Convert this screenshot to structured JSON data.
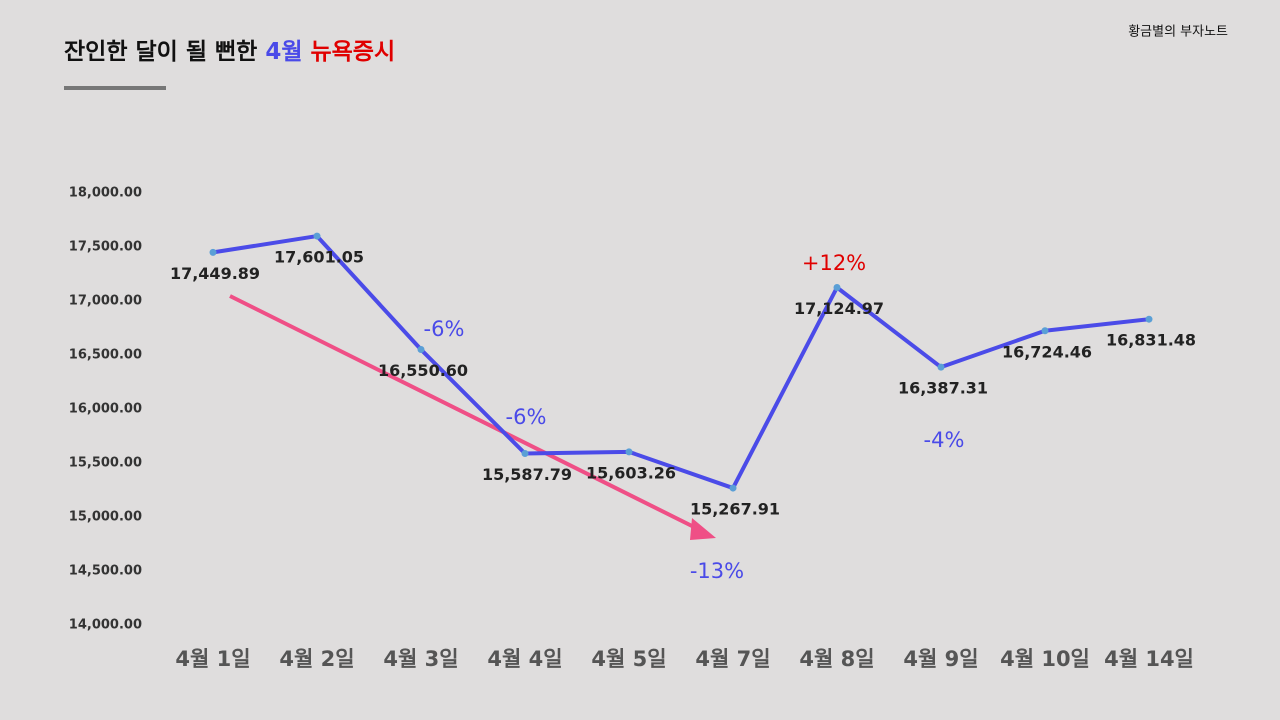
{
  "brand": "황금별의 부자노트",
  "chart_data": {
    "type": "line",
    "title_parts": [
      {
        "text": "잔인한 달이 될 뻔한 ",
        "color": "#111111"
      },
      {
        "text": "4월",
        "color": "#4a4ae8"
      },
      {
        "text": " 뉴욕증시",
        "color": "#e00000"
      }
    ],
    "categories": [
      "4월 1일",
      "4월 2일",
      "4월 3일",
      "4월 4일",
      "4월 5일",
      "4월 7일",
      "4월 8일",
      "4월 9일",
      "4월 10일",
      "4월 14일"
    ],
    "series": [
      {
        "name": null,
        "color": "#4b4be8",
        "marker_color": "#5a9fd6",
        "values": [
          17449.89,
          17601.05,
          16550.6,
          15587.79,
          15603.26,
          15267.91,
          17124.97,
          16387.31,
          16724.46,
          16831.48
        ],
        "value_labels": [
          "17,449.89",
          "17,601.05",
          "16,550.60",
          "15,587.79",
          "15,603.26",
          "15,267.91",
          "17,124.97",
          "16,387.31",
          "16,724.46",
          "16,831.48"
        ]
      }
    ],
    "ylim": [
      14000,
      18000
    ],
    "yticks": [
      {
        "value": 14000,
        "label": "14,000.00"
      },
      {
        "value": 14500,
        "label": "14,500.00"
      },
      {
        "value": 15000,
        "label": "15,000.00"
      },
      {
        "value": 15500,
        "label": "15,500.00"
      },
      {
        "value": 16000,
        "label": "16,000.00"
      },
      {
        "value": 16500,
        "label": "16,500.00"
      },
      {
        "value": 17000,
        "label": "17,000.00"
      },
      {
        "value": 17500,
        "label": "17,500.00"
      },
      {
        "value": 18000,
        "label": "18,000.00"
      }
    ],
    "annotations": [
      {
        "text": "-6%",
        "color": "#4a4ae8"
      },
      {
        "text": "-6%",
        "color": "#4a4ae8"
      },
      {
        "text": "-13%",
        "color": "#4a4ae8"
      },
      {
        "text": "+12%",
        "color": "#e00000"
      },
      {
        "text": "-4%",
        "color": "#4a4ae8"
      }
    ]
  }
}
